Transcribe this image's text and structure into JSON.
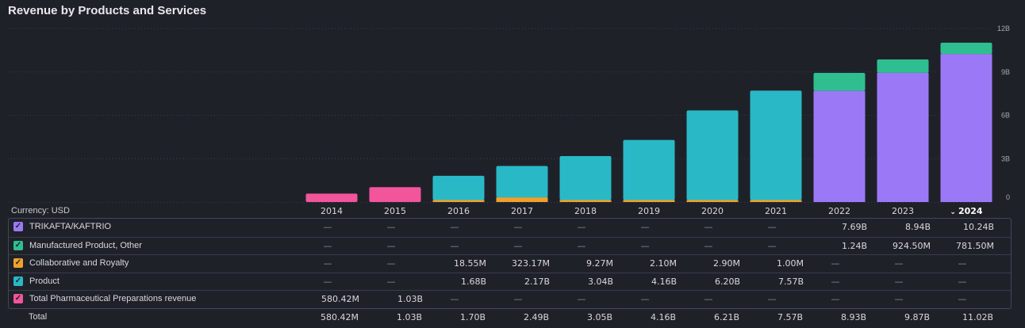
{
  "title": "Revenue by Products and Services",
  "currency_label": "Currency: USD",
  "selected_year": "2024",
  "total_label": "Total",
  "colors": {
    "TRIKAFTA/KAFTRIO": "#9b79f6",
    "Manufactured Product, Other": "#2fbe8f",
    "Collaborative and Royalty": "#f0a12b",
    "Product": "#29b9c6",
    "Total Pharmaceutical Preparations revenue": "#f2559b"
  },
  "chart_data": {
    "type": "bar",
    "stacked": true,
    "title": "Revenue by Products and Services",
    "categories": [
      "2014",
      "2015",
      "2016",
      "2017",
      "2018",
      "2019",
      "2020",
      "2021",
      "2022",
      "2023",
      "2024"
    ],
    "y_ticks": [
      "0",
      "3B",
      "6B",
      "9B",
      "12B"
    ],
    "ylim": [
      0,
      12
    ],
    "y_unit": "B",
    "grid": true,
    "series": [
      {
        "name": "Total Pharmaceutical Preparations revenue",
        "values": [
          0.58042,
          1.03,
          null,
          null,
          null,
          null,
          null,
          null,
          null,
          null,
          null
        ]
      },
      {
        "name": "Collaborative and Royalty",
        "values": [
          null,
          null,
          0.01855,
          0.32317,
          0.00927,
          0.0021,
          0.0029,
          0.001,
          null,
          null,
          null
        ]
      },
      {
        "name": "Product",
        "values": [
          null,
          null,
          1.68,
          2.17,
          3.04,
          4.16,
          6.2,
          7.57,
          null,
          null,
          null
        ]
      },
      {
        "name": "TRIKAFTA/KAFTRIO",
        "values": [
          null,
          null,
          null,
          null,
          null,
          null,
          null,
          null,
          7.69,
          8.94,
          10.24
        ]
      },
      {
        "name": "Manufactured Product, Other",
        "values": [
          null,
          null,
          null,
          null,
          null,
          null,
          null,
          null,
          1.24,
          0.9245,
          0.7815
        ]
      }
    ]
  },
  "table": {
    "rows": [
      {
        "label": "TRIKAFTA/KAFTRIO",
        "cells": [
          "—",
          "—",
          "—",
          "—",
          "—",
          "—",
          "—",
          "—",
          "7.69B",
          "8.94B",
          "10.24B"
        ]
      },
      {
        "label": "Manufactured Product, Other",
        "cells": [
          "—",
          "—",
          "—",
          "—",
          "—",
          "—",
          "—",
          "—",
          "1.24B",
          "924.50M",
          "781.50M"
        ]
      },
      {
        "label": "Collaborative and Royalty",
        "cells": [
          "—",
          "—",
          "18.55M",
          "323.17M",
          "9.27M",
          "2.10M",
          "2.90M",
          "1.00M",
          "—",
          "—",
          "—"
        ]
      },
      {
        "label": "Product",
        "cells": [
          "—",
          "—",
          "1.68B",
          "2.17B",
          "3.04B",
          "4.16B",
          "6.20B",
          "7.57B",
          "—",
          "—",
          "—"
        ]
      },
      {
        "label": "Total Pharmaceutical Preparations revenue",
        "cells": [
          "580.42M",
          "1.03B",
          "—",
          "—",
          "—",
          "—",
          "—",
          "—",
          "—",
          "—",
          "—"
        ]
      }
    ],
    "totals": [
      "580.42M",
      "1.03B",
      "1.70B",
      "2.49B",
      "3.05B",
      "4.16B",
      "6.21B",
      "7.57B",
      "8.93B",
      "9.87B",
      "11.02B"
    ]
  }
}
